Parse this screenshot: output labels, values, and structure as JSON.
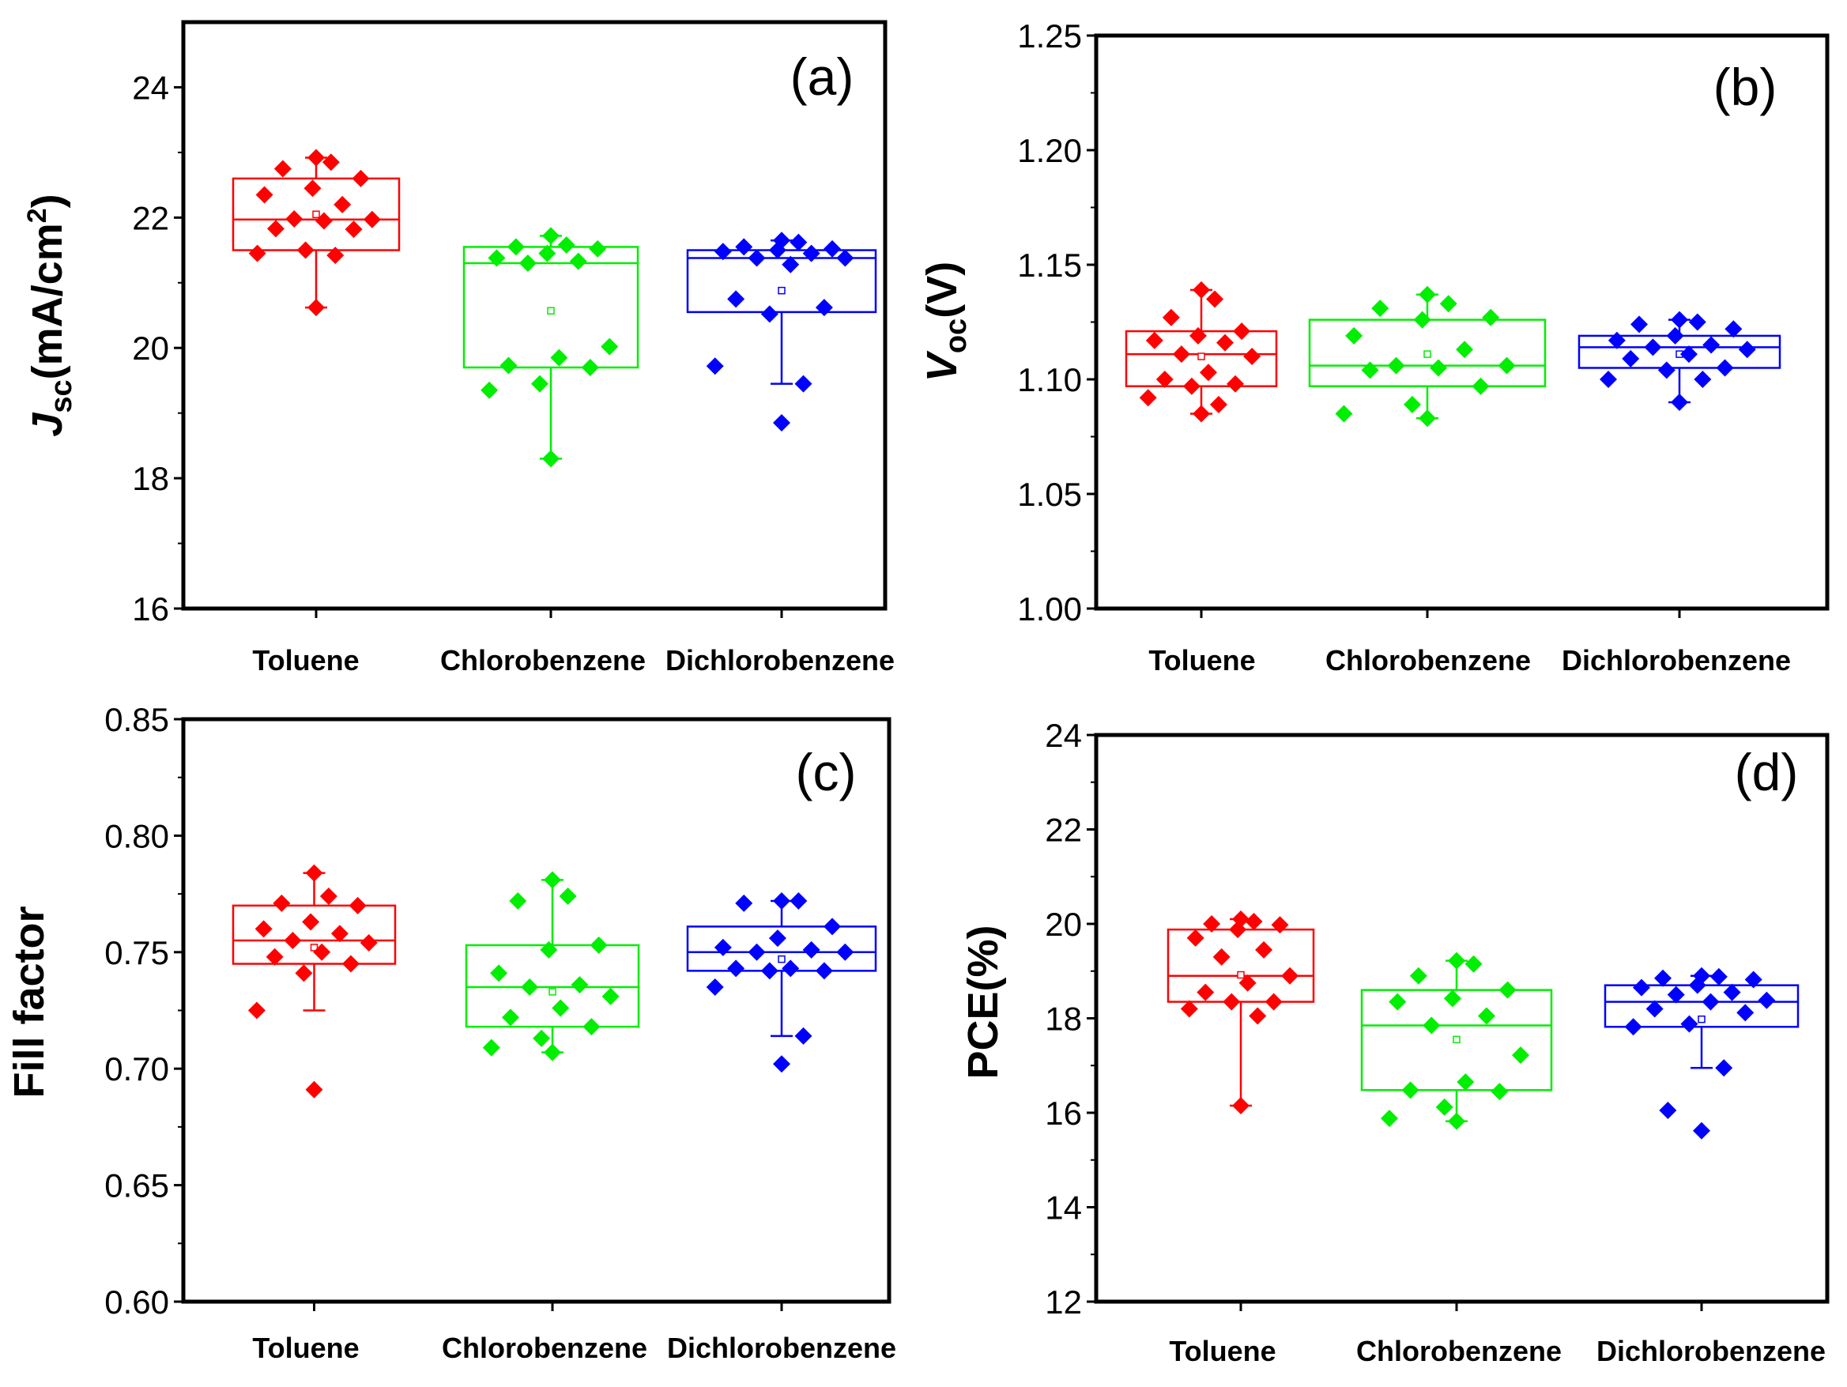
{
  "chart_data": [
    {
      "type": "box",
      "panel": "(a)",
      "ylabel": {
        "main": "J",
        "sub": "sc",
        "unit": "(mA/cm",
        "sup": "2",
        "close": ")"
      },
      "ylim": [
        16,
        25
      ],
      "ticks": [
        16,
        18,
        20,
        22,
        24
      ],
      "tick_labels": [
        "16",
        "18",
        "20",
        "22",
        "24"
      ],
      "categories": [
        "Toluene",
        "Chlorobenzene",
        "Dichlorobenzene"
      ],
      "series": [
        {
          "name": "Toluene",
          "color": "#ff0000",
          "q1": 21.5,
          "median": 21.97,
          "q3": 22.6,
          "mean": 22.05,
          "whisker_low": 20.62,
          "whisker_high": 22.92,
          "points": [
            22.92,
            22.85,
            22.75,
            22.6,
            22.45,
            22.35,
            22.2,
            21.98,
            21.97,
            21.95,
            21.83,
            21.82,
            21.5,
            21.45,
            21.42,
            20.62
          ]
        },
        {
          "name": "Chlorobenzene",
          "color": "#00ee00",
          "q1": 19.7,
          "median": 21.3,
          "q3": 21.55,
          "mean": 20.57,
          "whisker_low": 18.3,
          "whisker_high": 21.72,
          "points": [
            21.72,
            21.58,
            21.55,
            21.52,
            21.45,
            21.38,
            21.33,
            21.3,
            20.02,
            19.85,
            19.73,
            19.7,
            19.45,
            19.35,
            18.3
          ]
        },
        {
          "name": "Dichlorobenzene",
          "color": "#0000ff",
          "q1": 20.55,
          "median": 21.38,
          "q3": 21.5,
          "mean": 20.88,
          "whisker_low": 19.45,
          "whisker_high": 21.65,
          "points": [
            21.65,
            21.62,
            21.55,
            21.52,
            21.5,
            21.48,
            21.45,
            21.38,
            21.38,
            21.28,
            20.75,
            20.62,
            20.52,
            19.72,
            19.45,
            18.85
          ]
        }
      ]
    },
    {
      "type": "box",
      "panel": "(b)",
      "ylabel": {
        "main": "V",
        "sub": "oc",
        "unit": "(V)",
        "sup": "",
        "close": ""
      },
      "ylim": [
        1.0,
        1.25
      ],
      "ticks": [
        1.0,
        1.05,
        1.1,
        1.15,
        1.2,
        1.25
      ],
      "tick_labels": [
        "1.00",
        "1.05",
        "1.10",
        "1.15",
        "1.20",
        "1.25"
      ],
      "categories": [
        "Toluene",
        "Chlorobenzene",
        "Dichlorobenzene"
      ],
      "series": [
        {
          "name": "Toluene",
          "color": "#ff0000",
          "q1": 1.097,
          "median": 1.111,
          "q3": 1.121,
          "mean": 1.11,
          "whisker_low": 1.085,
          "whisker_high": 1.139,
          "points": [
            1.139,
            1.135,
            1.127,
            1.121,
            1.119,
            1.117,
            1.116,
            1.111,
            1.11,
            1.103,
            1.1,
            1.098,
            1.097,
            1.092,
            1.089,
            1.085
          ]
        },
        {
          "name": "Chlorobenzene",
          "color": "#00ee00",
          "q1": 1.097,
          "median": 1.106,
          "q3": 1.126,
          "mean": 1.111,
          "whisker_low": 1.083,
          "whisker_high": 1.137,
          "points": [
            1.137,
            1.133,
            1.131,
            1.127,
            1.126,
            1.119,
            1.113,
            1.106,
            1.106,
            1.105,
            1.104,
            1.097,
            1.089,
            1.085,
            1.083
          ]
        },
        {
          "name": "Dichlorobenzene",
          "color": "#0000ff",
          "q1": 1.105,
          "median": 1.114,
          "q3": 1.119,
          "mean": 1.111,
          "whisker_low": 1.09,
          "whisker_high": 1.126,
          "points": [
            1.126,
            1.125,
            1.124,
            1.122,
            1.119,
            1.117,
            1.115,
            1.114,
            1.113,
            1.111,
            1.109,
            1.105,
            1.104,
            1.1,
            1.1,
            1.09
          ]
        }
      ]
    },
    {
      "type": "box",
      "panel": "(c)",
      "ylabel": {
        "main": "Fill factor",
        "sub": "",
        "unit": "",
        "sup": "",
        "close": ""
      },
      "ylim": [
        0.6,
        0.85
      ],
      "ticks": [
        0.6,
        0.65,
        0.7,
        0.75,
        0.8,
        0.85
      ],
      "tick_labels": [
        "0.60",
        "0.65",
        "0.70",
        "0.75",
        "0.80",
        "0.85"
      ],
      "categories": [
        "Toluene",
        "Chlorobenzene",
        "Dichlorobenzene"
      ],
      "series": [
        {
          "name": "Toluene",
          "color": "#ff0000",
          "q1": 0.745,
          "median": 0.755,
          "q3": 0.77,
          "mean": 0.752,
          "whisker_low": 0.725,
          "whisker_high": 0.784,
          "points": [
            0.784,
            0.774,
            0.771,
            0.77,
            0.763,
            0.76,
            0.758,
            0.755,
            0.754,
            0.75,
            0.748,
            0.745,
            0.741,
            0.725,
            0.691
          ]
        },
        {
          "name": "Chlorobenzene",
          "color": "#00ee00",
          "q1": 0.718,
          "median": 0.735,
          "q3": 0.753,
          "mean": 0.733,
          "whisker_low": 0.707,
          "whisker_high": 0.781,
          "points": [
            0.781,
            0.774,
            0.772,
            0.753,
            0.751,
            0.741,
            0.736,
            0.735,
            0.731,
            0.726,
            0.722,
            0.718,
            0.713,
            0.709,
            0.707
          ]
        },
        {
          "name": "Dichlorobenzene",
          "color": "#0000ff",
          "q1": 0.742,
          "median": 0.75,
          "q3": 0.761,
          "mean": 0.747,
          "whisker_low": 0.714,
          "whisker_high": 0.772,
          "points": [
            0.772,
            0.772,
            0.771,
            0.761,
            0.756,
            0.752,
            0.751,
            0.75,
            0.75,
            0.743,
            0.743,
            0.742,
            0.742,
            0.735,
            0.714,
            0.702
          ]
        }
      ]
    },
    {
      "type": "box",
      "panel": "(d)",
      "ylabel": {
        "main": "PCE(%)",
        "sub": "",
        "unit": "",
        "sup": "",
        "close": ""
      },
      "ylim": [
        12,
        24
      ],
      "ticks": [
        12,
        14,
        16,
        18,
        20,
        22,
        24
      ],
      "tick_labels": [
        "12",
        "14",
        "16",
        "18",
        "20",
        "22",
        "24"
      ],
      "categories": [
        "Toluene",
        "Chlorobenzene",
        "Dichlorobenzene"
      ],
      "series": [
        {
          "name": "Toluene",
          "color": "#ff0000",
          "q1": 18.35,
          "median": 18.9,
          "q3": 19.88,
          "mean": 18.92,
          "whisker_low": 16.15,
          "whisker_high": 20.1,
          "points": [
            20.1,
            20.05,
            20.0,
            19.98,
            19.88,
            19.7,
            19.45,
            19.3,
            18.9,
            18.75,
            18.55,
            18.35,
            18.35,
            18.2,
            18.05,
            16.15
          ]
        },
        {
          "name": "Chlorobenzene",
          "color": "#00ee00",
          "q1": 16.48,
          "median": 17.85,
          "q3": 18.6,
          "mean": 17.55,
          "whisker_low": 15.82,
          "whisker_high": 19.22,
          "points": [
            19.22,
            19.15,
            18.9,
            18.6,
            18.42,
            18.35,
            18.05,
            17.85,
            17.22,
            16.65,
            16.48,
            16.45,
            16.12,
            15.88,
            15.82
          ]
        },
        {
          "name": "Dichlorobenzene",
          "color": "#0000ff",
          "q1": 17.82,
          "median": 18.35,
          "q3": 18.7,
          "mean": 17.98,
          "whisker_low": 16.95,
          "whisker_high": 18.9,
          "points": [
            18.9,
            18.88,
            18.85,
            18.82,
            18.7,
            18.65,
            18.55,
            18.5,
            18.38,
            18.35,
            18.2,
            18.12,
            17.88,
            17.82,
            16.95,
            16.05,
            15.62
          ]
        }
      ]
    }
  ]
}
